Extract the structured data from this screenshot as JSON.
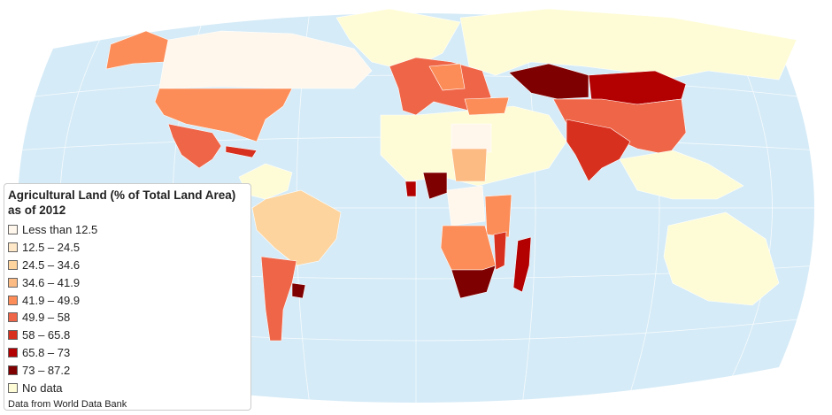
{
  "legend": {
    "title": [
      "Agricultural Land (% of Total Land Area)",
      "as of 2012"
    ],
    "items": [
      {
        "label": "Less than 12.5",
        "color": "#fff7ec"
      },
      {
        "label": "12.5 – 24.5",
        "color": "#fee8c8"
      },
      {
        "label": "24.5 – 34.6",
        "color": "#fdd49e"
      },
      {
        "label": "34.6 – 41.9",
        "color": "#fdbb84"
      },
      {
        "label": "41.9 – 49.9",
        "color": "#fc8d59"
      },
      {
        "label": "49.9 – 58",
        "color": "#ef6548"
      },
      {
        "label": "58 – 65.8",
        "color": "#d7301f"
      },
      {
        "label": "65.8 – 73",
        "color": "#b30000"
      },
      {
        "label": "73 – 87.2",
        "color": "#7f0000"
      },
      {
        "label": "No data",
        "color": "#fefcd6"
      }
    ]
  },
  "source": "Data from World Data Bank"
}
